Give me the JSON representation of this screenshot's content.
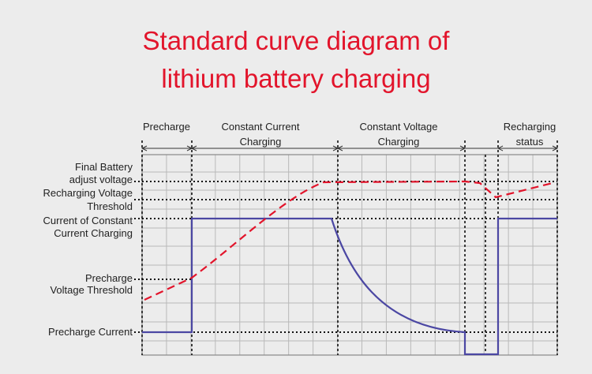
{
  "title": [
    "Standard curve diagram of",
    "lithium battery charging"
  ],
  "phases": [
    {
      "lines": [
        "Precharge"
      ]
    },
    {
      "lines": [
        "Constant Current",
        "Charging"
      ]
    },
    {
      "lines": [
        "Constant Voltage",
        "Charging"
      ]
    },
    {
      "lines": [
        "Recharging",
        "status"
      ]
    }
  ],
  "levels": [
    {
      "lines": [
        "Final Battery",
        "adjust voltage"
      ]
    },
    {
      "lines": [
        "Recharging Voltage",
        "Threshold"
      ]
    },
    {
      "lines": [
        "Current of Constant",
        "Current Charging"
      ]
    },
    {
      "lines": [
        "Precharge",
        "Voltage Threshold"
      ]
    },
    {
      "lines": [
        "Precharge Current"
      ]
    }
  ]
}
